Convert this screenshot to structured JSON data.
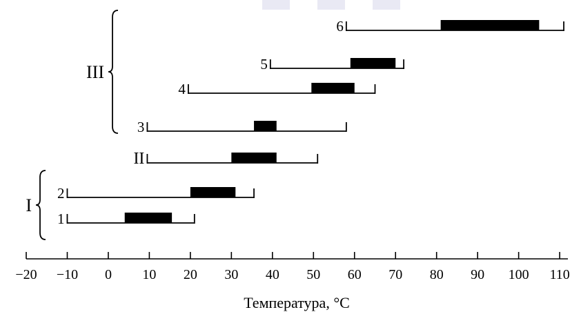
{
  "chart_data": {
    "type": "range",
    "xlabel": "Температура, °C",
    "xlim": [
      -20,
      112
    ],
    "x_ticks": [
      -20,
      -10,
      0,
      10,
      20,
      30,
      40,
      50,
      60,
      70,
      80,
      90,
      100,
      110
    ],
    "x_tick_labels": [
      "−20",
      "−10",
      "0",
      "10",
      "20",
      "30",
      "40",
      "50",
      "60",
      "70",
      "80",
      "90",
      "100",
      "110"
    ],
    "series": [
      {
        "label": "1",
        "min": -10,
        "max": 21,
        "opt_min": 4,
        "opt_max": 15.5
      },
      {
        "label": "2",
        "min": -10,
        "max": 35.5,
        "opt_min": 20,
        "opt_max": 31
      },
      {
        "label": "II",
        "min": 9.5,
        "max": 51,
        "opt_min": 30,
        "opt_max": 41
      },
      {
        "label": "3",
        "min": 9.5,
        "max": 58,
        "opt_min": 35.5,
        "opt_max": 41
      },
      {
        "label": "4",
        "min": 19.5,
        "max": 65,
        "opt_min": 49.5,
        "opt_max": 60
      },
      {
        "label": "5",
        "min": 39.5,
        "max": 72,
        "opt_min": 59,
        "opt_max": 70
      },
      {
        "label": "6",
        "min": 58,
        "max": 111,
        "opt_min": 81,
        "opt_max": 105
      }
    ],
    "groups": [
      {
        "label": "I",
        "members": [
          "1",
          "2"
        ]
      },
      {
        "label": "III",
        "members": [
          "3",
          "4",
          "5",
          "6"
        ]
      }
    ],
    "colors": {
      "line": "#000000",
      "optimum": "#000000"
    }
  }
}
